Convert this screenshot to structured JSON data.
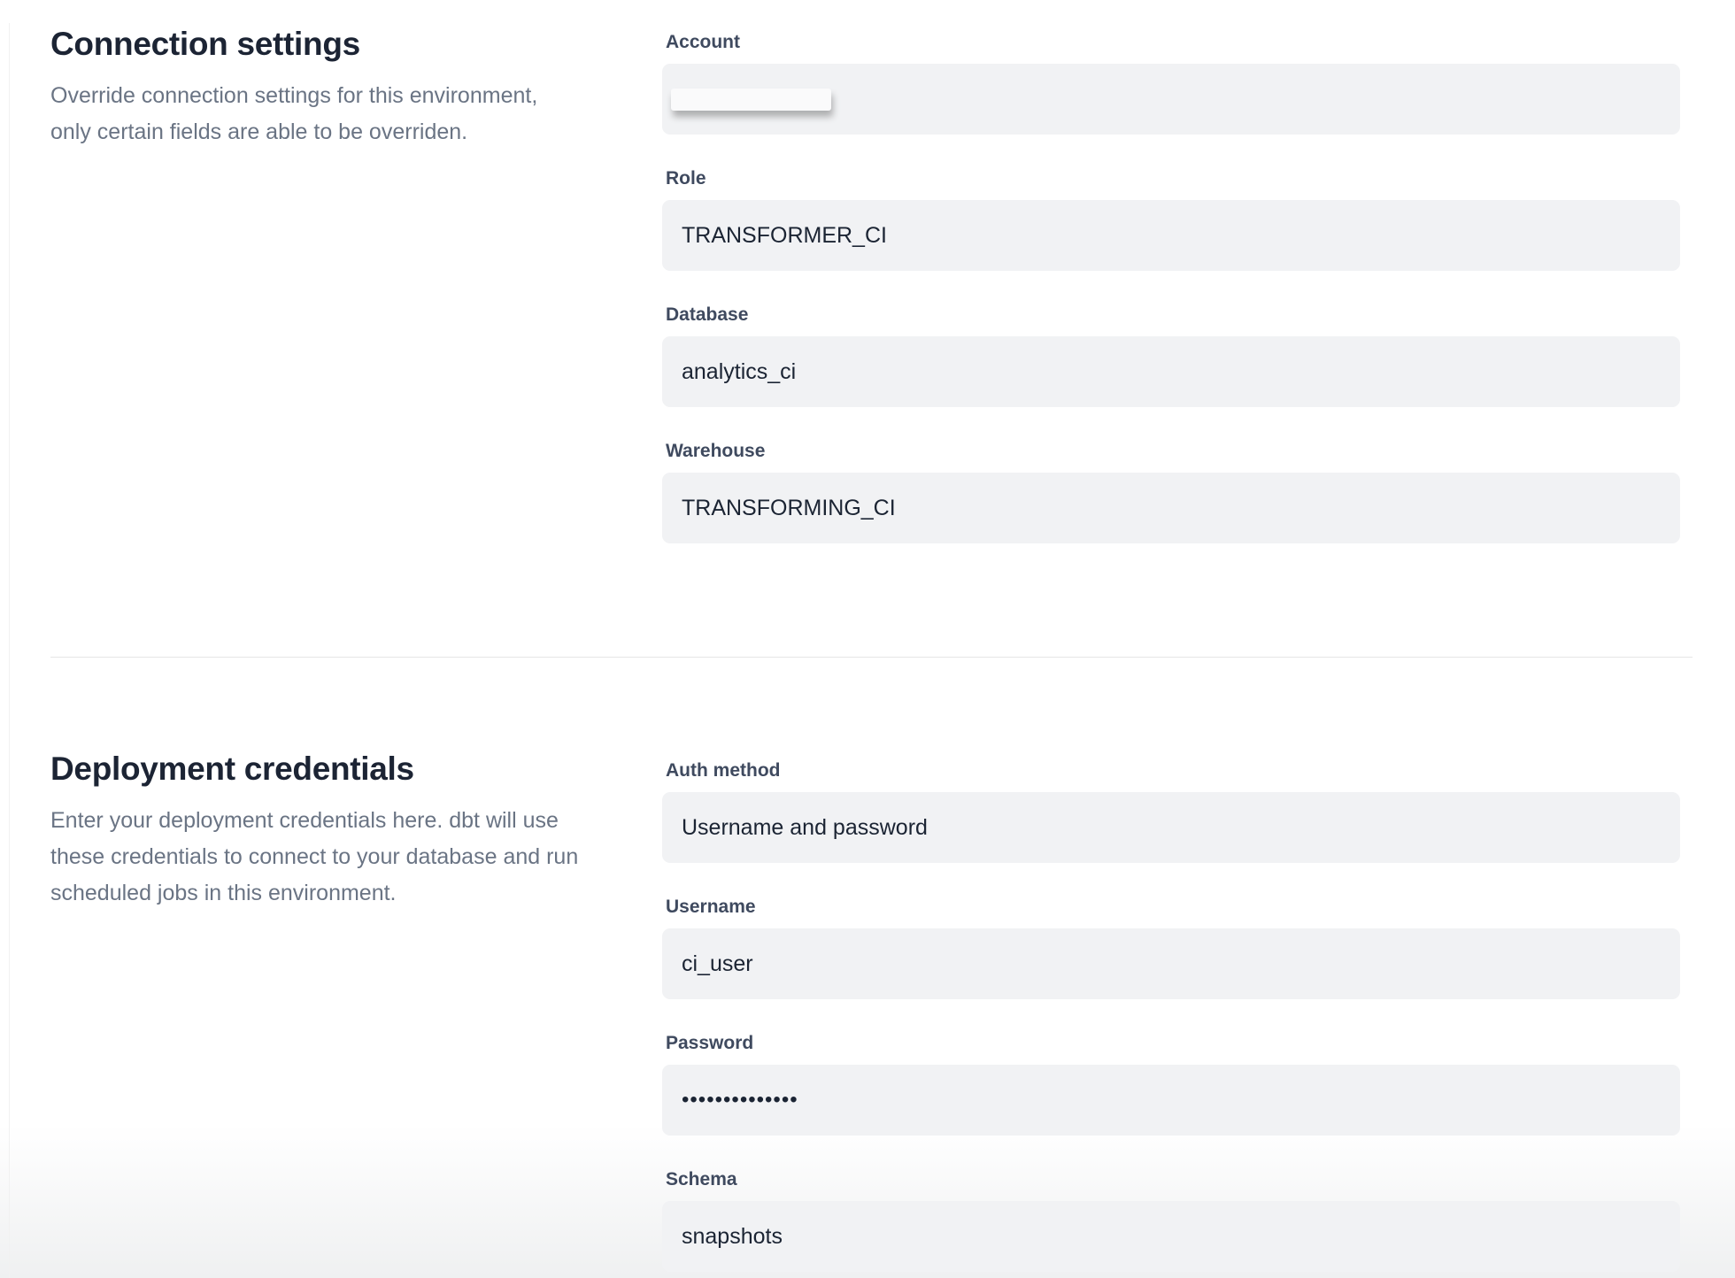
{
  "colors": {
    "heading": "#1c2434",
    "label": "#3f4a5f",
    "value": "#1b2433",
    "description": "#6a7484",
    "input_background": "#f1f2f4",
    "divider": "#e5e5e6",
    "bottom_fade": "#eff0f1"
  },
  "sections": [
    {
      "title": "Connection settings",
      "description_lines": [
        "Override connection settings for this environment,",
        "only certain fields are able to be overriden."
      ],
      "fields": [
        {
          "label": "Account",
          "value": "",
          "redacted": true
        },
        {
          "label": "Role",
          "value": "TRANSFORMER_CI"
        },
        {
          "label": "Database",
          "value": "analytics_ci"
        },
        {
          "label": "Warehouse",
          "value": "TRANSFORMING_CI"
        }
      ]
    },
    {
      "title": "Deployment credentials",
      "description_lines": [
        "Enter your deployment credentials here. dbt will use",
        "these credentials to connect to your database and run",
        "scheduled jobs in this environment."
      ],
      "fields": [
        {
          "label": "Auth method",
          "value": "Username and password"
        },
        {
          "label": "Username",
          "value": "ci_user"
        },
        {
          "label": "Password",
          "value": "••••••••••••••",
          "masked": true
        },
        {
          "label": "Schema",
          "value": "snapshots"
        }
      ]
    }
  ]
}
